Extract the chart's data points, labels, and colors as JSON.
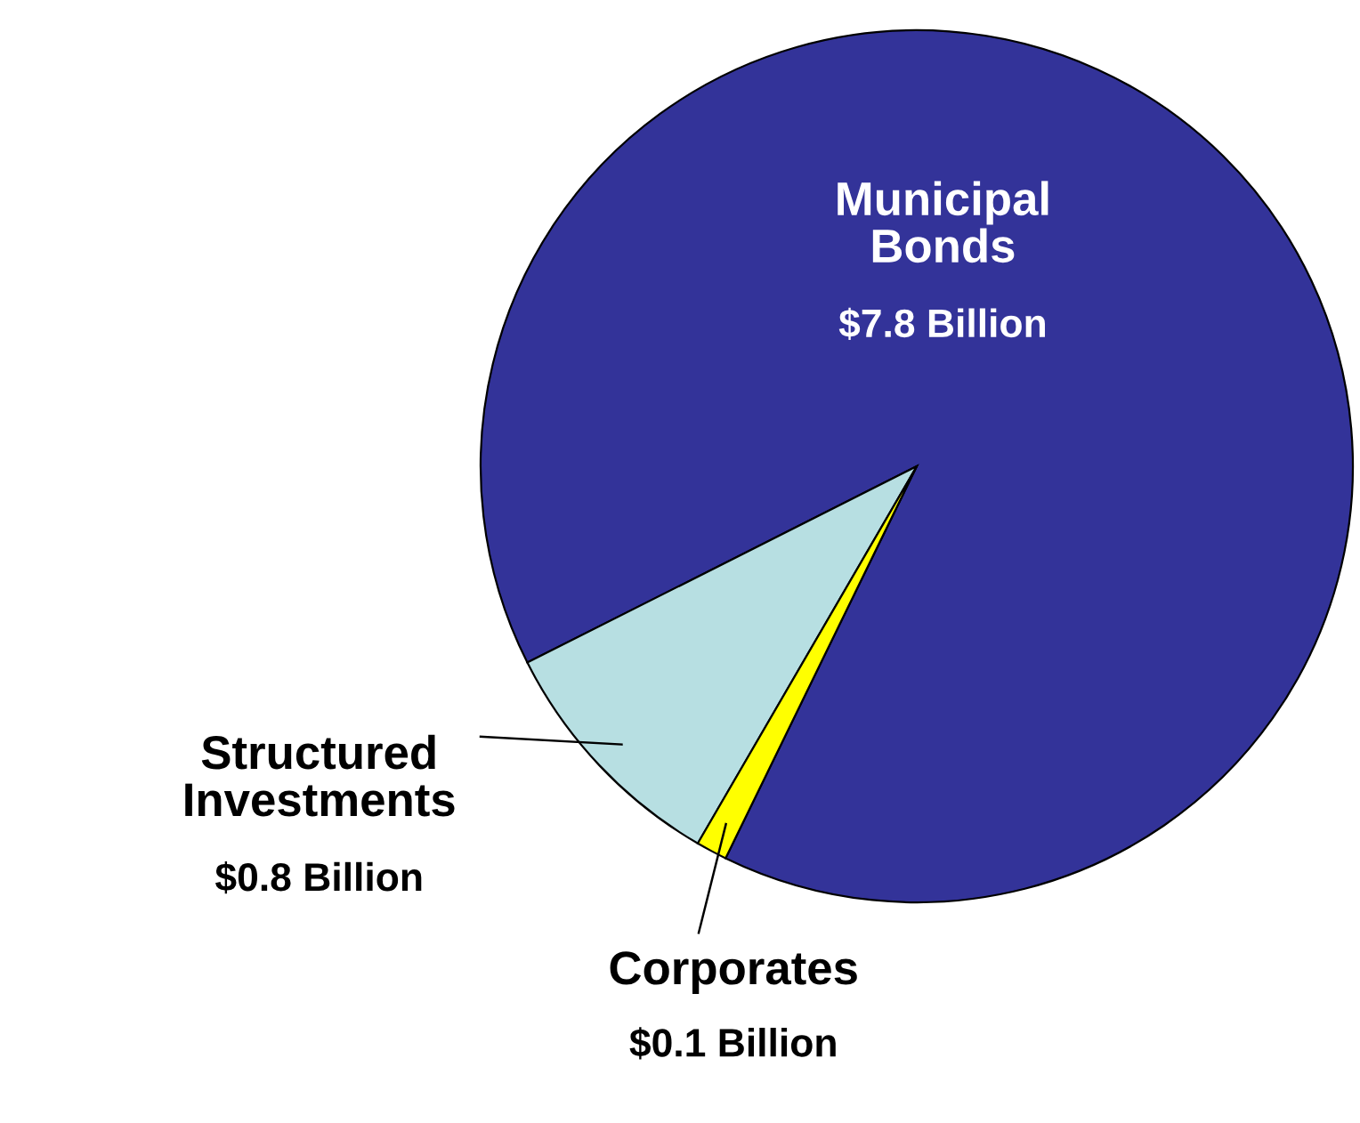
{
  "chart_data": {
    "type": "pie",
    "categories": [
      "Municipal Bonds",
      "Structured Investments",
      "Corporates"
    ],
    "values": [
      7.8,
      0.8,
      0.1
    ],
    "value_labels": [
      "$7.8 Billion",
      "$0.8 Billion",
      "$0.1 Billion"
    ],
    "colors": [
      "#333399",
      "#b7dfe2",
      "#ffff00"
    ]
  }
}
